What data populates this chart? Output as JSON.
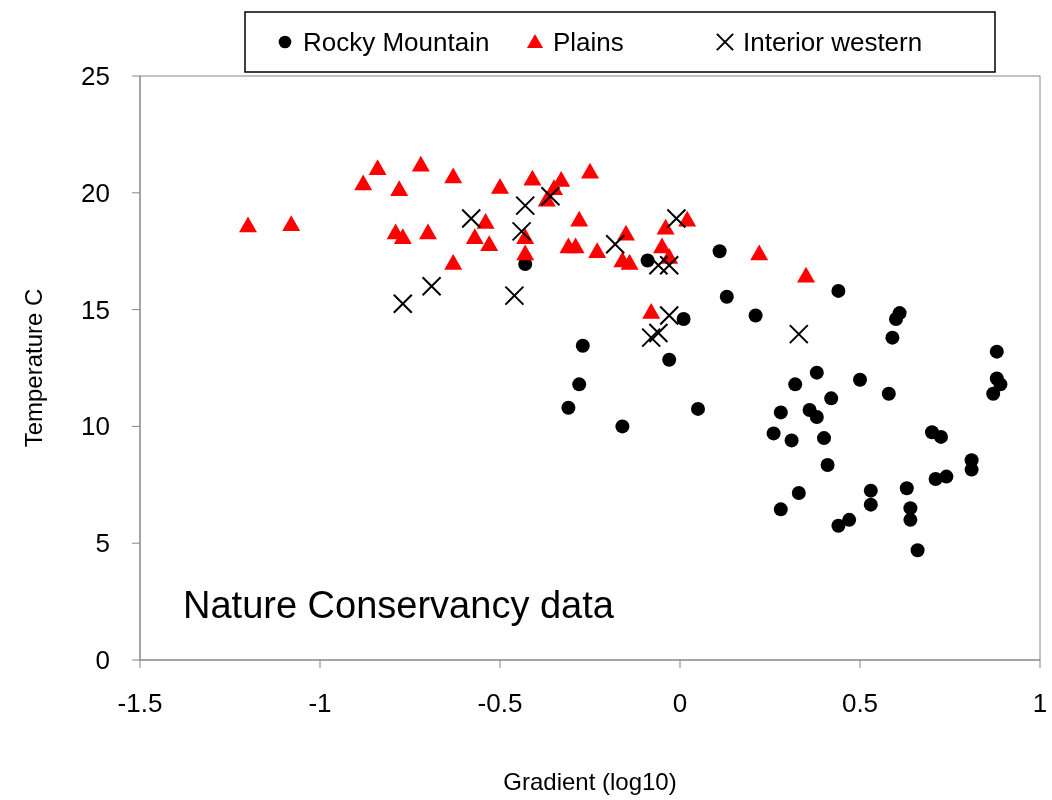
{
  "chart_data": {
    "type": "scatter",
    "xlabel": "Gradient (log10)",
    "ylabel": "Temperature C",
    "xlim": [
      -1.5,
      1
    ],
    "xticks": [
      -1.5,
      -1,
      -0.5,
      0,
      0.5,
      1
    ],
    "ylim": [
      0,
      25
    ],
    "yticks": [
      0,
      5,
      10,
      15,
      20,
      25
    ],
    "grid": false,
    "legend": "top",
    "annotations": [
      "Nature Conservancy data"
    ],
    "series": [
      {
        "name": "Rocky Mountain",
        "color": "#000000",
        "marker": "circle",
        "x": [
          -0.43,
          -0.09,
          0.11,
          -0.27,
          -0.28,
          -0.31,
          -0.16,
          0.01,
          -0.03,
          0.05,
          0.13,
          0.21,
          0.44,
          0.6,
          0.61,
          0.59,
          0.88,
          0.88,
          0.89,
          0.87,
          0.38,
          0.32,
          0.5,
          0.58,
          0.42,
          0.28,
          0.36,
          0.38,
          0.26,
          0.31,
          0.4,
          0.41,
          0.33,
          0.28,
          0.7,
          0.725,
          0.81,
          0.81,
          0.71,
          0.74,
          0.63,
          0.53,
          0.53,
          0.64,
          0.64,
          0.44,
          0.47,
          0.66
        ],
        "values": [
          16.95,
          17.1,
          17.5,
          13.45,
          11.8,
          10.8,
          10.0,
          14.6,
          12.85,
          10.75,
          15.55,
          14.75,
          15.8,
          14.6,
          14.85,
          13.8,
          13.2,
          12.05,
          11.8,
          11.4,
          12.3,
          11.8,
          12.0,
          11.4,
          11.2,
          10.6,
          10.7,
          10.4,
          9.7,
          9.4,
          9.5,
          8.35,
          7.15,
          6.45,
          9.75,
          9.55,
          8.55,
          8.15,
          7.75,
          7.85,
          7.35,
          7.25,
          6.65,
          6.5,
          6.0,
          5.75,
          6.0,
          4.7
        ]
      },
      {
        "name": "Plains",
        "color": "#ff0000",
        "marker": "triangle",
        "x": [
          -1.2,
          -1.08,
          -0.88,
          -0.84,
          -0.78,
          -0.72,
          -0.63,
          -0.79,
          -0.77,
          -0.7,
          -0.63,
          -0.5,
          -0.41,
          -0.33,
          -0.25,
          -0.35,
          -0.37,
          -0.54,
          -0.57,
          -0.53,
          -0.43,
          -0.43,
          -0.28,
          -0.31,
          -0.29,
          -0.23,
          -0.15,
          -0.16,
          -0.14,
          -0.04,
          0.02,
          -0.05,
          -0.03,
          -0.08,
          0.22,
          0.35
        ],
        "values": [
          18.6,
          18.65,
          20.4,
          21.05,
          20.15,
          21.2,
          20.7,
          18.3,
          18.1,
          18.3,
          17.0,
          20.25,
          20.6,
          20.55,
          20.9,
          20.2,
          19.7,
          18.75,
          18.1,
          17.8,
          18.1,
          17.4,
          18.85,
          17.7,
          17.7,
          17.5,
          18.25,
          17.1,
          17.0,
          18.5,
          18.85,
          17.7,
          17.25,
          14.9,
          17.4,
          16.45
        ]
      },
      {
        "name": "Interior western",
        "color": "#000000",
        "marker": "cross",
        "x": [
          -0.77,
          -0.69,
          -0.58,
          -0.43,
          -0.36,
          -0.44,
          -0.46,
          -0.18,
          -0.01,
          -0.06,
          -0.03,
          -0.03,
          -0.06,
          -0.08,
          0.33
        ],
        "values": [
          15.25,
          16.0,
          18.9,
          19.45,
          19.85,
          18.35,
          15.6,
          17.8,
          18.9,
          16.9,
          16.9,
          14.75,
          14.0,
          13.8,
          13.95
        ]
      }
    ]
  }
}
